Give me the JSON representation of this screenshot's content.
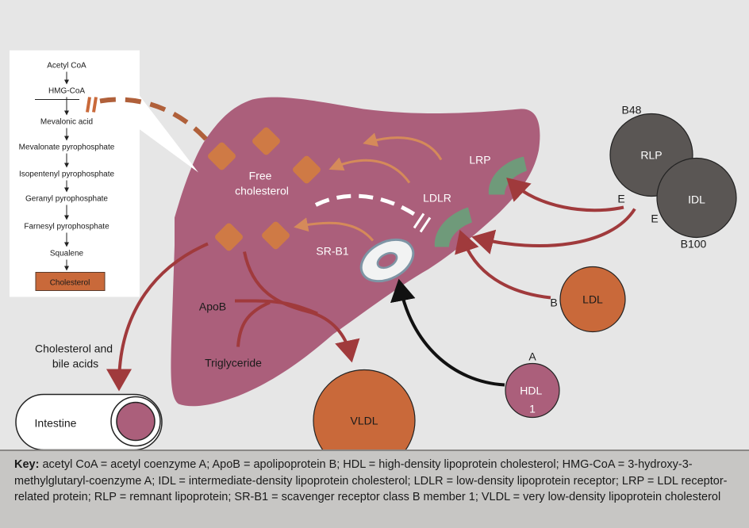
{
  "pathway": {
    "steps": [
      "Acetyl CoA",
      "HMG-CoA",
      "Mevalonic acid",
      "Mevalonate pyrophosphate",
      "Isopentenyl pyrophosphate",
      "Geranyl pyrophosphate",
      "Farnesyl pyrophosphate",
      "Squalene"
    ],
    "end_product": "Cholesterol"
  },
  "liver": {
    "free_cholesterol": [
      "Free",
      "cholesterol"
    ],
    "apob": "ApoB",
    "triglyceride": "Triglyceride"
  },
  "receptors": {
    "lrp": "LRP",
    "ldlr": "LDLR",
    "srb1": "SR-B1"
  },
  "particles": {
    "rlp": "RLP",
    "rlp_apo_top": "B48",
    "rlp_apo_e": "E",
    "idl": "IDL",
    "idl_apo_e": "E",
    "idl_apo_bottom": "B100",
    "ldl": "LDL",
    "ldl_apo": "B",
    "hdl": [
      "HDL",
      "1"
    ],
    "hdl_apo": "A",
    "vldl": "VLDL"
  },
  "excretion": {
    "label": [
      "Cholesterol and",
      "bile acids"
    ],
    "intestine": "Intestine"
  },
  "key": {
    "title": "Key:",
    "text": "acetyl CoA = acetyl coenzyme A; ApoB = apolipoprotein B; HDL = high-density lipoprotein cholesterol; HMG-CoA = 3-hydroxy-3-methylglutaryl-coenzyme A; IDL = intermediate-density lipoprotein cholesterol; LDLR = low-density lipoprotein receptor; LRP = LDL receptor-related protein; RLP = remnant lipoprotein; SR-B1 = scavenger receptor class B member 1; VLDL = very low-density lipoprotein cholesterol"
  },
  "colors": {
    "background": "#e6e6e6",
    "liver": "#ab5f7b",
    "orange": "#c9693a",
    "diamond": "#cf7a45",
    "arrow_red": "#a03a3c",
    "receptor_green": "#6f9a7a",
    "particle_grey": "#5a5654",
    "hdl_purple": "#ab5f7b"
  }
}
